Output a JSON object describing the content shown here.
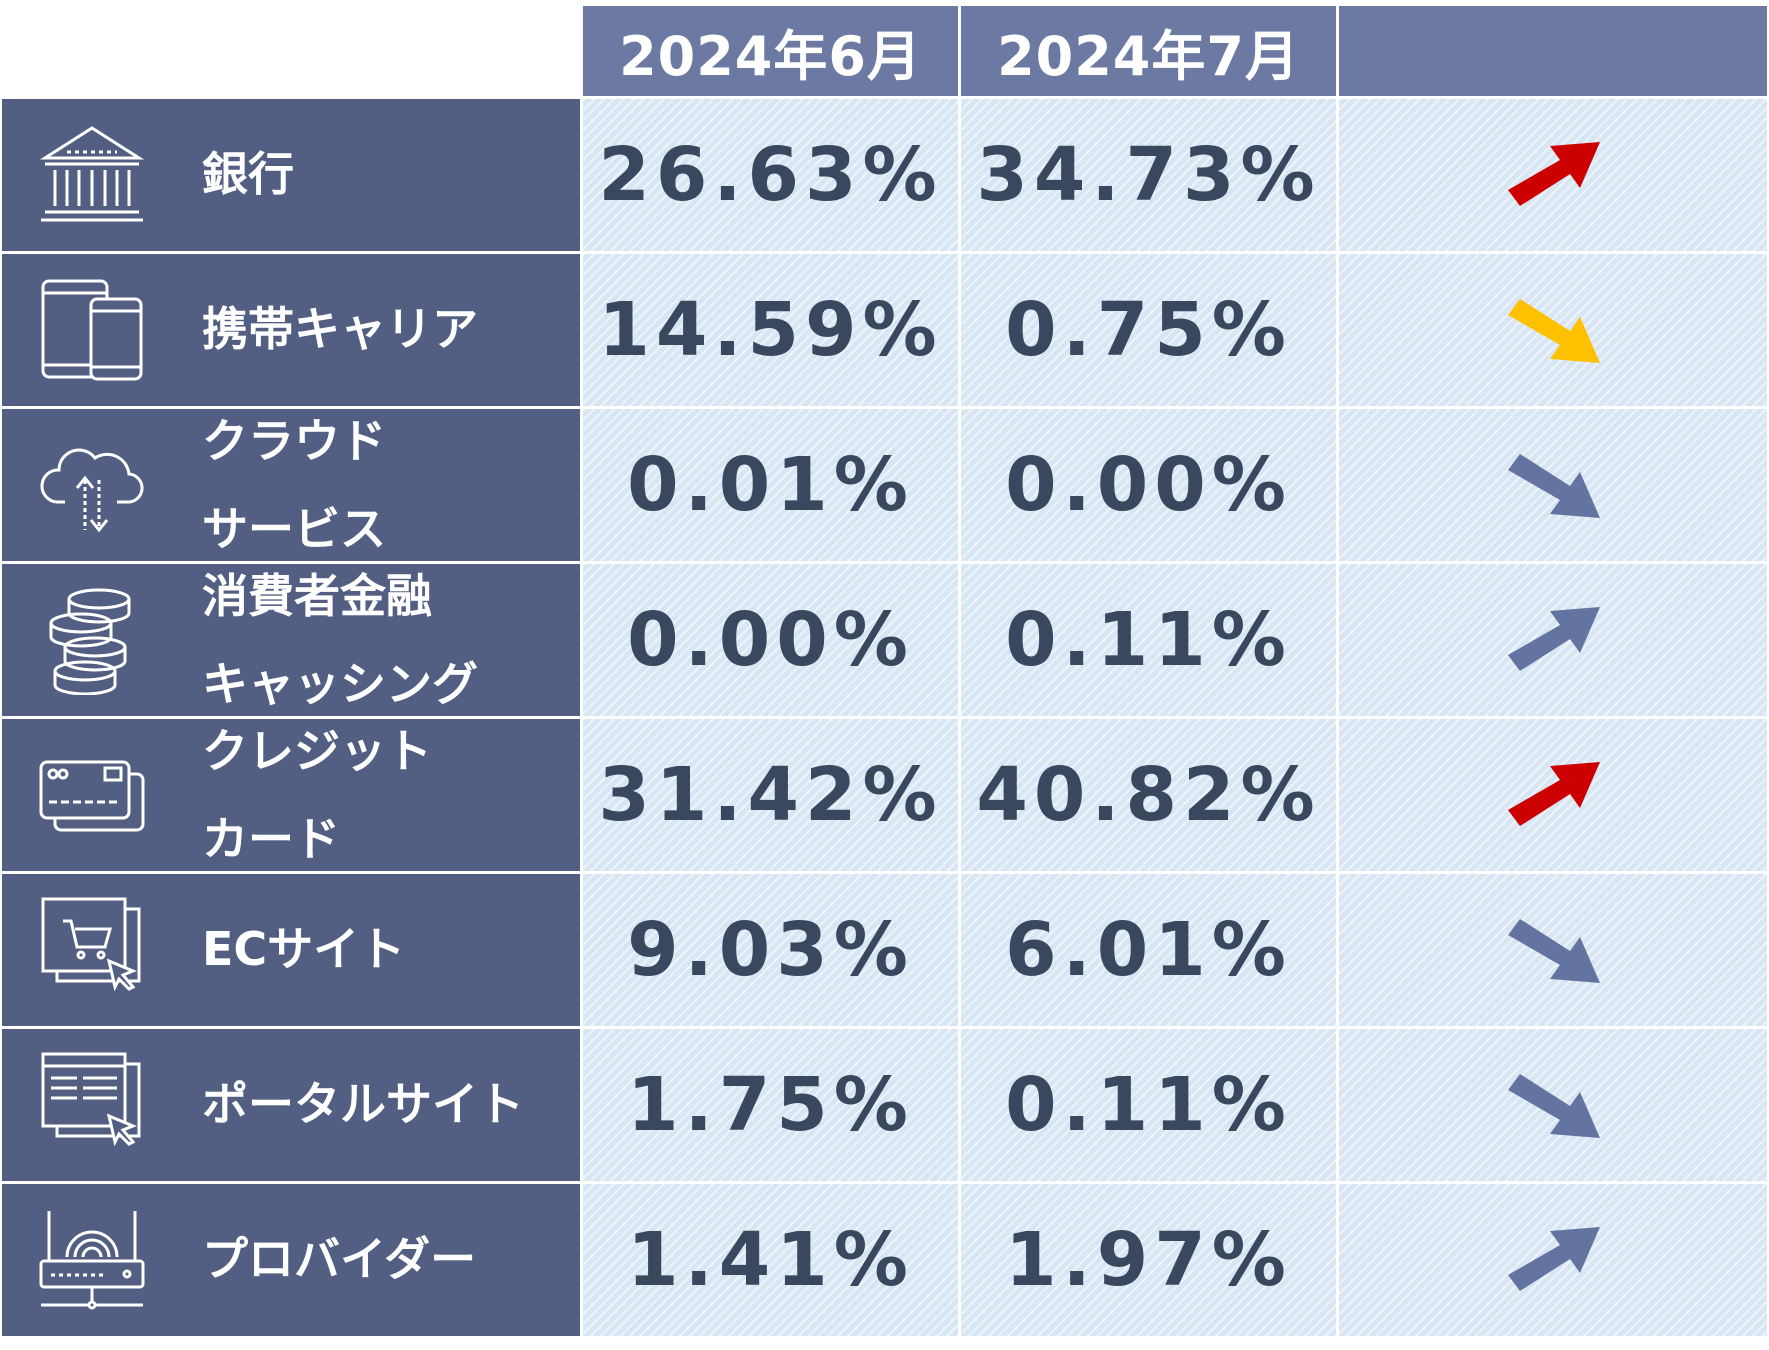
{
  "chart_data": {
    "type": "table",
    "columns": [
      "2024年6月",
      "2024年7月"
    ],
    "rows": [
      {
        "label_lines": [
          "銀行"
        ],
        "icon": "bank-icon",
        "jun": "26.63%",
        "jul": "34.73%",
        "trend": "up",
        "arrow_color": "#cc0000"
      },
      {
        "label_lines": [
          "携帯キャリア"
        ],
        "icon": "mobile-devices-icon",
        "jun": "14.59%",
        "jul": "0.75%",
        "trend": "down",
        "arrow_color": "#ffc000"
      },
      {
        "label_lines": [
          "クラウド",
          "サービス"
        ],
        "icon": "cloud-icon",
        "jun": "0.01%",
        "jul": "0.00%",
        "trend": "down",
        "arrow_color": "#6474a0"
      },
      {
        "label_lines": [
          "消費者金融",
          "キャッシング"
        ],
        "icon": "coins-icon",
        "jun": "0.00%",
        "jul": "0.11%",
        "trend": "up",
        "arrow_color": "#6474a0"
      },
      {
        "label_lines": [
          "クレジット",
          "カード"
        ],
        "icon": "credit-card-icon",
        "jun": "31.42%",
        "jul": "40.82%",
        "trend": "up",
        "arrow_color": "#cc0000"
      },
      {
        "label_lines": [
          "ECサイト"
        ],
        "icon": "shopping-site-icon",
        "jun": "9.03%",
        "jul": "6.01%",
        "trend": "down",
        "arrow_color": "#6474a0"
      },
      {
        "label_lines": [
          "ポータルサイト"
        ],
        "icon": "portal-site-icon",
        "jun": "1.75%",
        "jul": "0.11%",
        "trend": "down",
        "arrow_color": "#6474a0"
      },
      {
        "label_lines": [
          "プロバイダー"
        ],
        "icon": "router-icon",
        "jun": "1.41%",
        "jul": "1.97%",
        "trend": "up",
        "arrow_color": "#6474a0"
      }
    ]
  }
}
